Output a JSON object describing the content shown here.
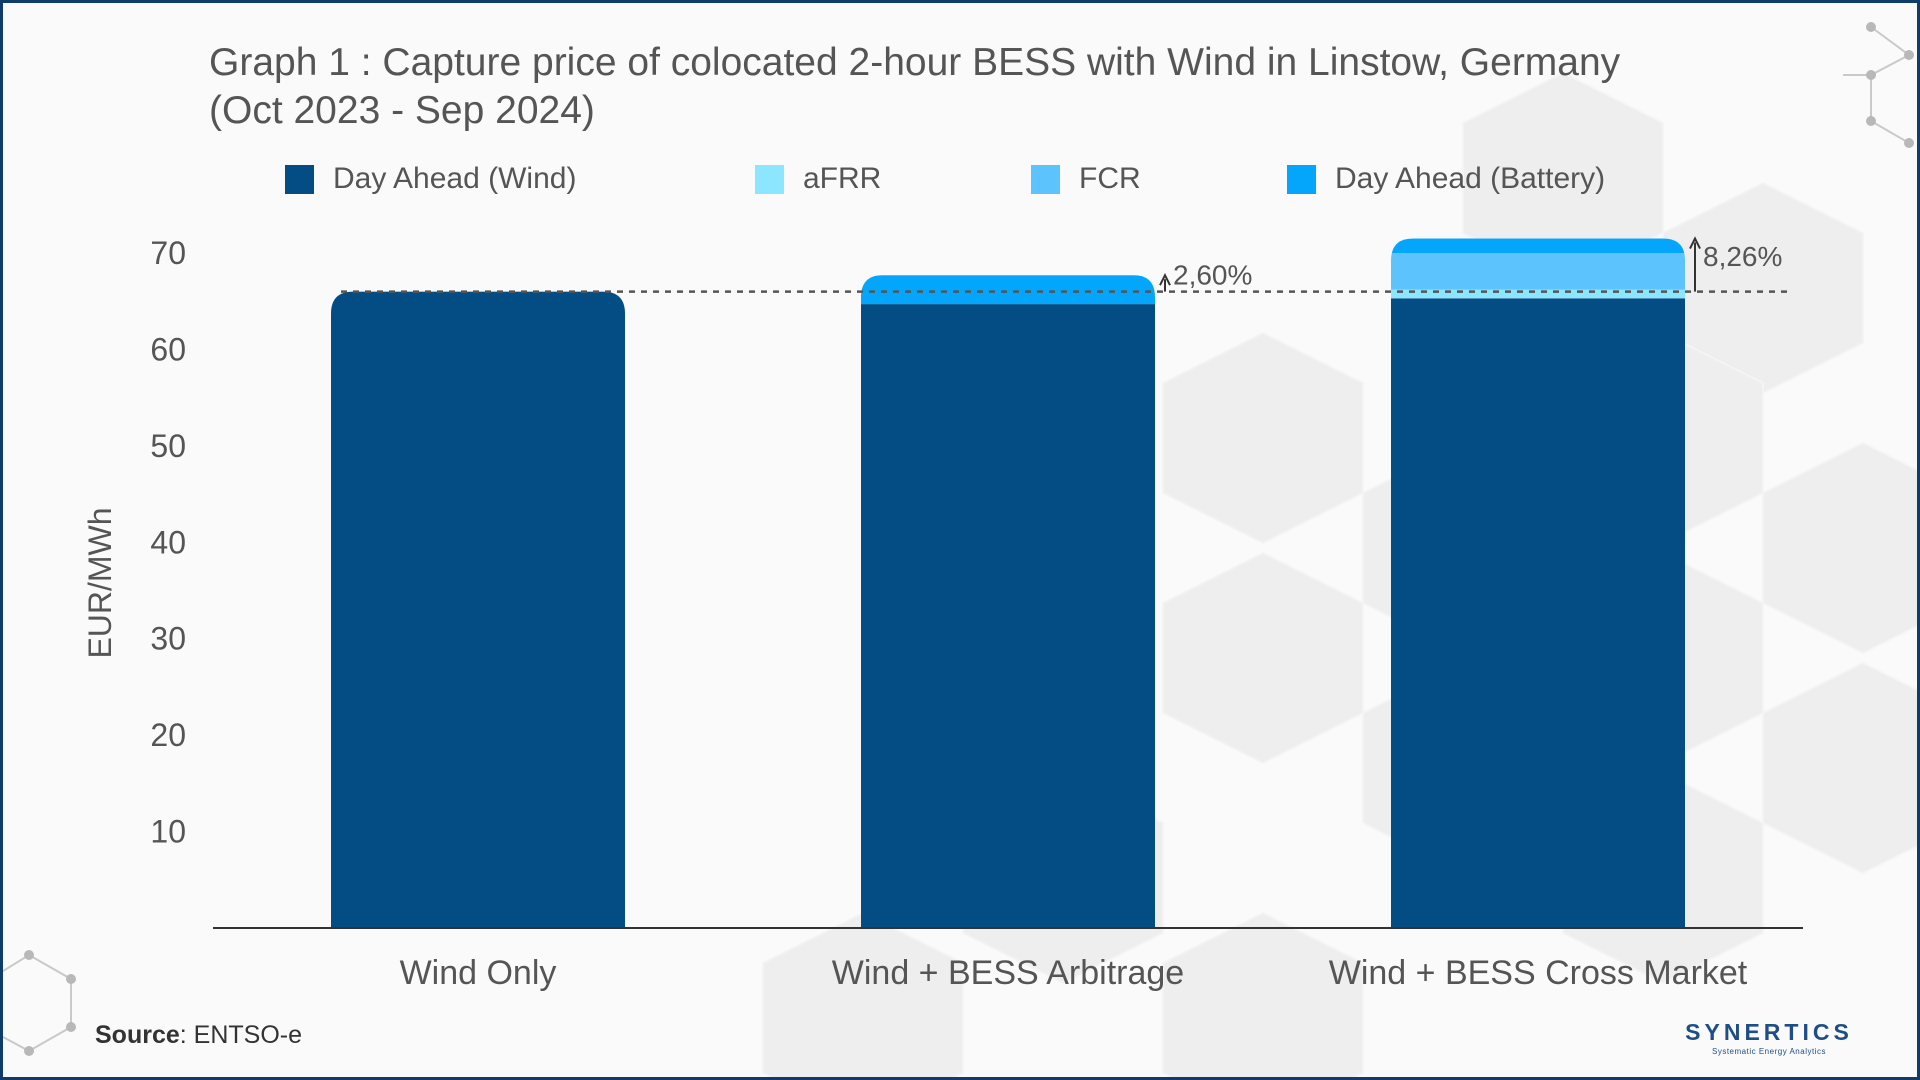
{
  "title_lines": [
    "Graph 1 : Capture price of colocated 2-hour BESS with Wind in Linstow, Germany",
    "(Oct 2023 - Sep 2024)"
  ],
  "source": {
    "label": "Source",
    "text": ": ENTSO-e"
  },
  "logo": {
    "brand": "SYNERTICS",
    "tagline": "Systematic Energy Analytics"
  },
  "colors": {
    "day_ahead_wind": "#044d84",
    "afrr": "#8de6ff",
    "fcr": "#5dc3fd",
    "day_ahead_battery": "#04a6fb",
    "text": "#555555",
    "frame": "#0e3d6b"
  },
  "chart_data": {
    "type": "bar",
    "stacked": true,
    "title": "Graph 1 : Capture price of colocated 2-hour BESS with Wind in Linstow, Germany (Oct 2023 - Sep 2024)",
    "ylabel": "EUR/MWh",
    "xlabel": "",
    "ylim": [
      0,
      70
    ],
    "yticks": [
      10,
      20,
      30,
      40,
      50,
      60,
      70
    ],
    "categories": [
      "Wind Only",
      "Wind + BESS Arbitrage",
      "Wind + BESS Cross Market"
    ],
    "series": [
      {
        "name": "Day Ahead (Wind)",
        "color": "#044d84",
        "values": [
          66.0,
          64.7,
          65.3
        ]
      },
      {
        "name": "aFRR",
        "color": "#8de6ff",
        "values": [
          0,
          0,
          0.9
        ]
      },
      {
        "name": "FCR",
        "color": "#5dc3fd",
        "values": [
          0,
          0,
          3.8
        ]
      },
      {
        "name": "Day Ahead (Battery)",
        "color": "#04a6fb",
        "values": [
          0,
          3.0,
          1.5
        ]
      }
    ],
    "reference_line": {
      "value": 66.0,
      "style": "dashed"
    },
    "annotations": [
      {
        "category": "Wind + BESS Arbitrage",
        "text": "2,60%"
      },
      {
        "category": "Wind + BESS Cross Market",
        "text": "8,26%"
      }
    ],
    "legend_position": "top",
    "grid": false
  }
}
